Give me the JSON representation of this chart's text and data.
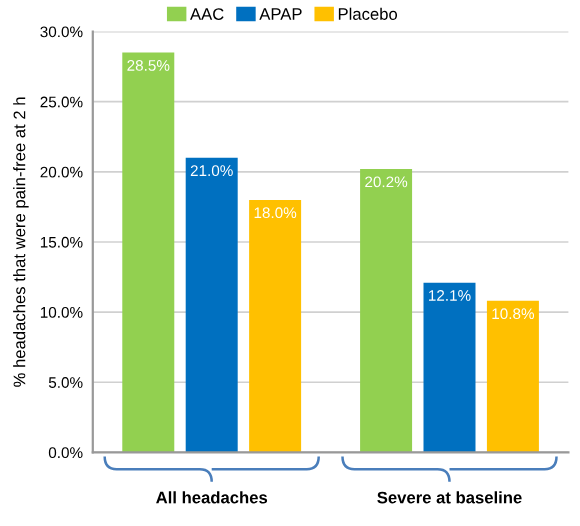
{
  "chart_data": {
    "type": "bar",
    "ylabel": "% headaches that were pain-free at 2 h",
    "categories": [
      "All headaches",
      "Severe at baseline"
    ],
    "series": [
      {
        "name": "AAC",
        "color": "#92d050",
        "values": [
          28.5,
          20.2
        ],
        "value_labels": [
          "28.5%",
          "20.2%"
        ]
      },
      {
        "name": "APAP",
        "color": "#0070c0",
        "values": [
          21.0,
          12.1
        ],
        "value_labels": [
          "21.0%",
          "12.1%"
        ]
      },
      {
        "name": "Placebo",
        "color": "#ffc000",
        "values": [
          18.0,
          10.8
        ],
        "value_labels": [
          "18.0%",
          "10.8%"
        ]
      }
    ],
    "ylim": [
      0,
      30
    ],
    "yticks": [
      {
        "value": 0,
        "label": "0.0%"
      },
      {
        "value": 5,
        "label": "5.0%"
      },
      {
        "value": 10,
        "label": "10.0%"
      },
      {
        "value": 15,
        "label": "15.0%"
      },
      {
        "value": 20,
        "label": "20.0%"
      },
      {
        "value": 25,
        "label": "25.0%"
      },
      {
        "value": 30,
        "label": "30.0%"
      }
    ],
    "grid": "y",
    "legend": "top"
  }
}
